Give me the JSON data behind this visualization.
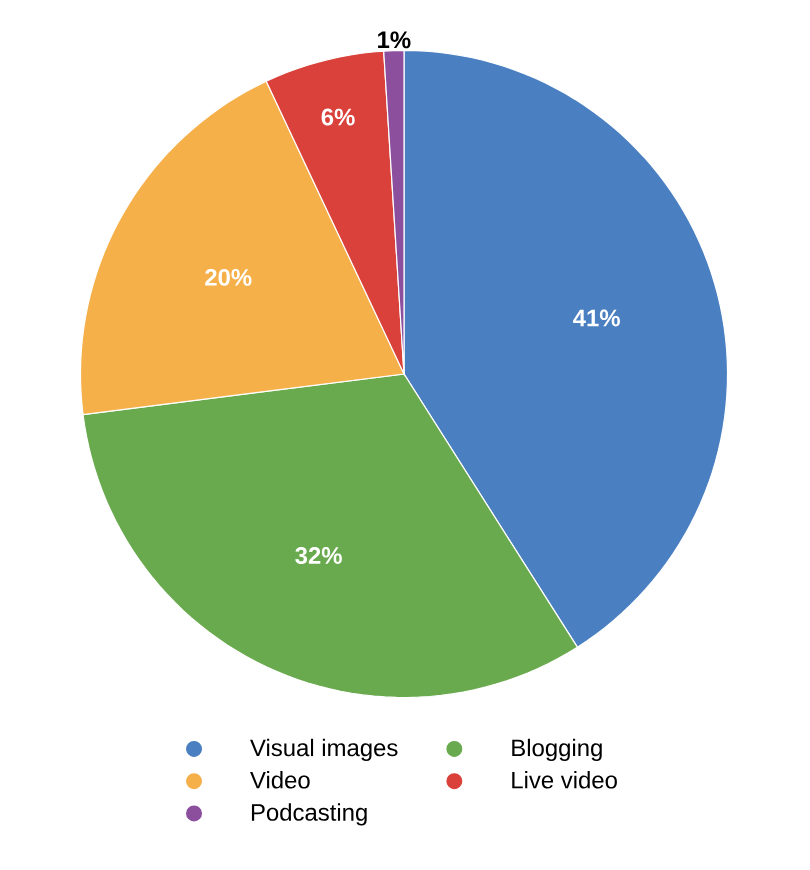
{
  "chart_data": {
    "type": "pie",
    "categories": [
      "Visual images",
      "Blogging",
      "Video",
      "Live video",
      "Podcasting"
    ],
    "values": [
      41,
      32,
      20,
      6,
      1
    ],
    "colors": [
      "#4a7fc1",
      "#6aaa4f",
      "#f5b04a",
      "#d9413a",
      "#8b4f9e"
    ],
    "value_labels": [
      "41%",
      "32%",
      "20%",
      "6%",
      "1%"
    ],
    "legend": "bottom"
  }
}
